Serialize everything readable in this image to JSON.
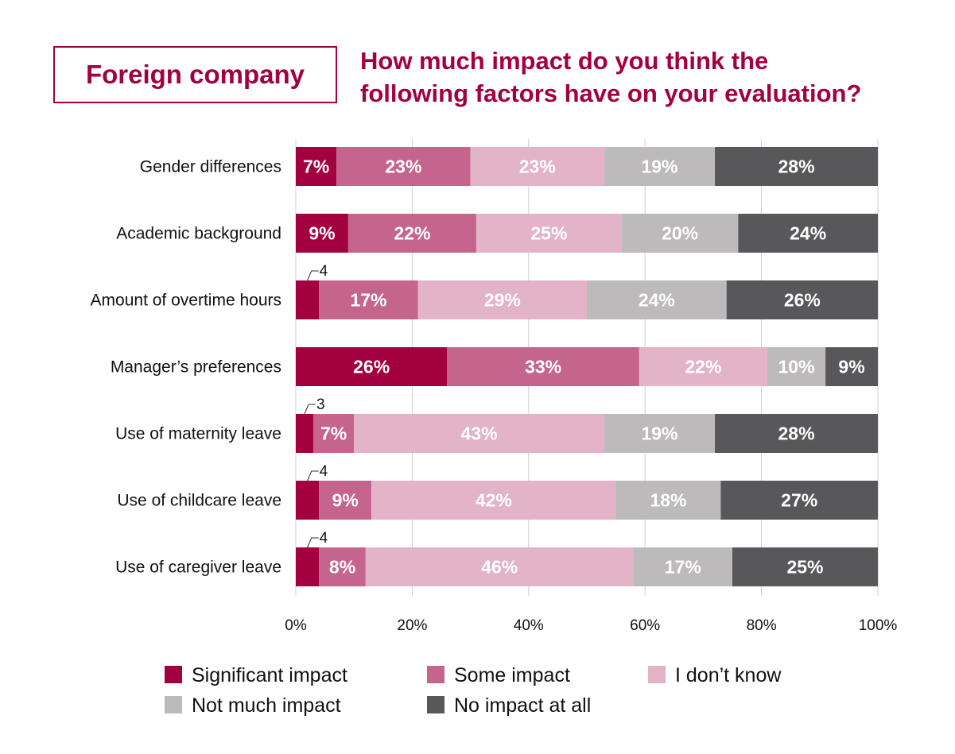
{
  "header": {
    "badge": "Foreign company",
    "title_line1": "How much impact do you think the",
    "title_line2": "following factors have on your evaluation?"
  },
  "chart_data": {
    "type": "bar",
    "orientation": "horizontal",
    "stacked": true,
    "categories": [
      "Gender differences",
      "Academic background",
      "Amount of overtime hours",
      "Manager’s preferences",
      "Use of maternity leave",
      "Use of childcare leave",
      "Use of caregiver leave"
    ],
    "series": [
      {
        "name": "Significant impact",
        "color": "#a3003f",
        "values": [
          7,
          9,
          4,
          26,
          3,
          4,
          4
        ],
        "labels": [
          "7%",
          "9%",
          "4",
          "26%",
          "3",
          "4",
          "4"
        ],
        "label_outside": [
          false,
          false,
          true,
          false,
          true,
          true,
          true
        ]
      },
      {
        "name": "Some impact",
        "color": "#c5648c",
        "values": [
          23,
          22,
          17,
          33,
          7,
          9,
          8
        ],
        "labels": [
          "23%",
          "22%",
          "17%",
          "33%",
          "7%",
          "9%",
          "8%"
        ]
      },
      {
        "name": "I don’t know",
        "color": "#e3b3c7",
        "values": [
          23,
          25,
          29,
          22,
          43,
          42,
          46
        ],
        "labels": [
          "23%",
          "25%",
          "29%",
          "22%",
          "43%",
          "42%",
          "46%"
        ]
      },
      {
        "name": "Not much impact",
        "color": "#bcbabb",
        "values": [
          19,
          20,
          24,
          10,
          19,
          18,
          17
        ],
        "labels": [
          "19%",
          "20%",
          "24%",
          "10%",
          "19%",
          "18%",
          "17%"
        ]
      },
      {
        "name": "No impact at all",
        "color": "#58585a",
        "values": [
          28,
          24,
          26,
          9,
          28,
          27,
          25
        ],
        "labels": [
          "28%",
          "24%",
          "26%",
          "9%",
          "28%",
          "27%",
          "25%"
        ]
      }
    ],
    "xlim": [
      0,
      100
    ],
    "xticks": [
      "0%",
      "20%",
      "40%",
      "60%",
      "80%",
      "100%"
    ],
    "grid": true,
    "legend_position": "bottom"
  }
}
